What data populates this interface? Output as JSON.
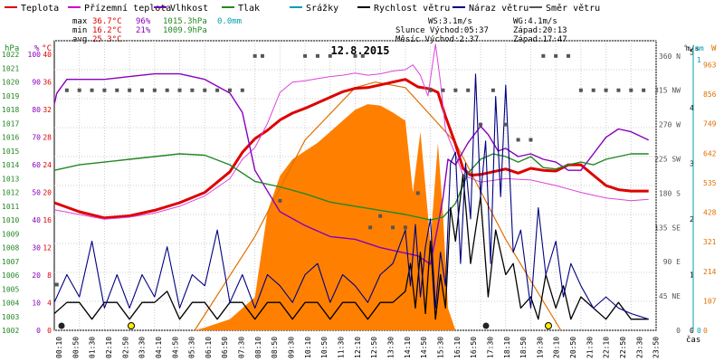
{
  "legend": [
    {
      "label": "Teplota",
      "color": "#dd0000"
    },
    {
      "label": "Přízemní teplota",
      "color": "#cc00cc"
    },
    {
      "label": "Vlhkost",
      "color": "#7700aa"
    },
    {
      "label": "Tlak",
      "color": "#228822"
    },
    {
      "label": "Srážky",
      "color": "#00a0b0"
    },
    {
      "label": "Rychlost větru",
      "color": "#000000"
    },
    {
      "label": "Náraz větru",
      "color": "#000080"
    },
    {
      "label": "Směr větru",
      "color": "#555555"
    }
  ],
  "stats": {
    "max_label": "max",
    "max_temp": "36.7°C",
    "max_hum": "96%",
    "max_press": "1015.3hPa",
    "max_rain": "0.0mm",
    "min_label": "min",
    "min_temp": "16.2°C",
    "min_hum": "21%",
    "min_press": "1009.9hPa",
    "avg_label": "avg",
    "avg_temp": "25.3°C"
  },
  "info": {
    "ws": "WS:3.1m/s",
    "wg": "WG:4.1m/s",
    "sun": "Slunce Východ:05:37",
    "sun_set": "Západ:20:13",
    "moon": "Měsíc  Východ:2:37",
    "moon_set": "Západ:17:47"
  },
  "colors": {
    "temp": "#dd0000",
    "ground": "#dd44dd",
    "humidity": "#8800bb",
    "pressure": "#228822",
    "rain": "#00a0b0",
    "wind": "#000000",
    "gust": "#000080",
    "dir": "#555555",
    "solar_fill": "#ff8000",
    "solar_line": "#e07000",
    "axis_orange": "#e07000"
  },
  "chart_data": {
    "type": "line",
    "title": "12.8.2015",
    "xlabel": "čas",
    "x_ticks": [
      "00:10",
      "00:50",
      "01:30",
      "02:10",
      "02:50",
      "03:30",
      "04:10",
      "04:50",
      "05:30",
      "06:10",
      "06:50",
      "07:30",
      "08:10",
      "08:50",
      "09:30",
      "10:10",
      "10:50",
      "11:30",
      "12:10",
      "12:50",
      "13:30",
      "14:10",
      "14:50",
      "15:30",
      "16:10",
      "16:50",
      "17:30",
      "18:10",
      "18:50",
      "19:30",
      "20:10",
      "20:50",
      "21:30",
      "22:10",
      "22:50",
      "23:30",
      "23:50"
    ],
    "axes": {
      "hPa": {
        "label": "hPa",
        "range": [
          1002,
          1023
        ],
        "ticks": [
          "1002",
          "1003",
          "1004",
          "1005",
          "1006",
          "1007",
          "1008",
          "1009",
          "1010",
          "1011",
          "1012",
          "1013",
          "1014",
          "1015",
          "1016",
          "1017",
          "1018",
          "1019",
          "1020",
          "1021",
          "1022"
        ]
      },
      "humidity": {
        "label": "%",
        "range": [
          0,
          105
        ],
        "ticks": [
          "0",
          "10",
          "20",
          "30",
          "40",
          "50",
          "60",
          "70",
          "80",
          "90",
          "100"
        ]
      },
      "temp": {
        "label": "°C",
        "range": [
          0,
          42
        ],
        "ticks": [
          "0",
          "4",
          "8",
          "12",
          "16",
          "20",
          "24",
          "28",
          "32",
          "36",
          "40"
        ]
      },
      "wind_dir": {
        "label": "°",
        "ticks": [
          "0",
          "45 NE",
          "90 E",
          "135 SE",
          "180 S",
          "225 SW",
          "270 W",
          "315 NW",
          "360 N"
        ]
      },
      "wind_speed": {
        "label": "m/s",
        "range": [
          0,
          5
        ],
        "ticks": [
          "0",
          "1",
          "2",
          "3",
          "4",
          "5"
        ]
      },
      "rain": {
        "label": "mm",
        "ticks": [
          "0",
          "1"
        ]
      },
      "solar": {
        "label": "W",
        "range": [
          0,
          1050
        ],
        "ticks": [
          "0",
          "107",
          "214",
          "321",
          "428",
          "535",
          "642",
          "749",
          "856",
          "963"
        ]
      }
    },
    "series": [
      {
        "name": "Teplota",
        "color": "#dd0000",
        "x": [
          0,
          1,
          2,
          3,
          4,
          5,
          6,
          7,
          7.5,
          8,
          8.5,
          9,
          9.5,
          10,
          10.5,
          11,
          11.5,
          12,
          12.5,
          13,
          13.5,
          14,
          14.5,
          15,
          15.3,
          15.6,
          16,
          16.3,
          16.6,
          17,
          17.5,
          18,
          18.5,
          19,
          19.5,
          20,
          20.5,
          21,
          21.5,
          22,
          22.5,
          23,
          23.7
        ],
        "y": [
          18.5,
          17.2,
          16.3,
          16.6,
          17.4,
          18.5,
          20.0,
          23.0,
          25.8,
          27.8,
          29.0,
          30.5,
          31.5,
          32.2,
          33.0,
          33.8,
          34.6,
          35.1,
          35.2,
          35.6,
          36.0,
          36.4,
          35.3,
          35.0,
          34.5,
          31.0,
          27.0,
          23.5,
          22.5,
          22.6,
          23.0,
          23.4,
          22.8,
          23.5,
          23.2,
          23.1,
          24.0,
          24.0,
          22.5,
          21.0,
          20.4,
          20.2,
          20.2
        ]
      },
      {
        "name": "Přízemní teplota",
        "color": "#dd44dd",
        "x": [
          0,
          1,
          2,
          3,
          4,
          5,
          6,
          7,
          7.5,
          8,
          8.5,
          9,
          9.5,
          10,
          10.5,
          11,
          11.5,
          12,
          12.5,
          13,
          13.5,
          14,
          14.3,
          14.6,
          14.9,
          15.2,
          15.4,
          15.6,
          16,
          16.3,
          17,
          18,
          19,
          20,
          21,
          22,
          23,
          23.7
        ],
        "y": [
          17.5,
          16.8,
          16.1,
          16.4,
          17.0,
          18.0,
          19.5,
          22.0,
          24.8,
          26.5,
          30.0,
          34.5,
          36.0,
          36.2,
          36.5,
          36.8,
          37.0,
          37.3,
          37.0,
          37.2,
          37.6,
          37.8,
          38.5,
          37.0,
          34.0,
          41.5,
          36.0,
          29.0,
          25.5,
          22.5,
          21.5,
          22.0,
          21.8,
          21.0,
          20.0,
          19.2,
          18.8,
          19.0
        ]
      },
      {
        "name": "Vlhkost",
        "color": "#8800bb",
        "x": [
          0,
          0.1,
          0.5,
          1,
          2,
          3,
          4,
          5,
          6,
          7,
          7.5,
          8,
          9,
          10,
          11,
          12,
          13,
          14,
          14.5,
          15,
          15.3,
          15.5,
          15.7,
          16,
          16.5,
          17,
          17.3,
          17.7,
          18,
          18.5,
          19,
          19.5,
          20,
          20.5,
          21,
          21.5,
          22,
          22.5,
          23,
          23.7
        ],
        "y": [
          82,
          86,
          91,
          91,
          91,
          92,
          93,
          93,
          91,
          86,
          79,
          58,
          43,
          38,
          34,
          33,
          30,
          28,
          27,
          24,
          38,
          48,
          62,
          60,
          68,
          74,
          71,
          65,
          66,
          63,
          64,
          62,
          61,
          58,
          58,
          64,
          70,
          73,
          72,
          69
        ]
      },
      {
        "name": "Tlak",
        "color": "#228822",
        "x": [
          0,
          1,
          2,
          3,
          4,
          5,
          6,
          7,
          8,
          9,
          10,
          11,
          12,
          13,
          14,
          15,
          15.5,
          16,
          16.5,
          17,
          17.5,
          18,
          18.5,
          19,
          19.5,
          20,
          20.5,
          21,
          21.5,
          22,
          22.5,
          23,
          23.7
        ],
        "y": [
          1013.6,
          1014.0,
          1014.2,
          1014.4,
          1014.6,
          1014.8,
          1014.7,
          1014.0,
          1012.8,
          1012.4,
          1011.9,
          1011.3,
          1011.0,
          1010.7,
          1010.4,
          1010.0,
          1010.2,
          1011.2,
          1013.4,
          1014.4,
          1014.8,
          1014.6,
          1014.2,
          1014.6,
          1013.8,
          1013.7,
          1014.0,
          1014.2,
          1014.0,
          1014.4,
          1014.6,
          1014.8,
          1014.8
        ]
      },
      {
        "name": "Rychlost větru",
        "color": "#000000",
        "x": [
          0,
          0.5,
          1,
          1.5,
          2,
          2.5,
          3,
          3.5,
          4,
          4.5,
          5,
          5.5,
          6,
          6.5,
          7,
          7.5,
          8,
          8.5,
          9,
          9.5,
          10,
          10.5,
          11,
          11.5,
          12,
          12.5,
          13,
          13.5,
          14,
          14.2,
          14.4,
          14.6,
          14.8,
          15,
          15.2,
          15.4,
          15.6,
          15.8,
          16,
          16.3,
          16.6,
          17,
          17.3,
          17.6,
          18,
          18.3,
          18.6,
          19,
          19.3,
          19.6,
          20,
          20.3,
          20.6,
          21,
          21.5,
          22,
          22.5,
          23,
          23.7
        ],
        "y": [
          0.3,
          0.5,
          0.5,
          0.2,
          0.5,
          0.5,
          0.2,
          0.5,
          0.5,
          0.7,
          0.2,
          0.5,
          0.5,
          0.2,
          0.5,
          0.5,
          0.2,
          0.5,
          0.5,
          0.2,
          0.5,
          0.5,
          0.2,
          0.5,
          0.5,
          0.2,
          0.5,
          0.5,
          0.7,
          1.2,
          0.4,
          1.4,
          0.3,
          1.6,
          0.2,
          1.0,
          0.4,
          2.2,
          1.6,
          2.8,
          1.2,
          2.4,
          0.6,
          1.8,
          1.0,
          1.2,
          0.4,
          0.6,
          0.2,
          1.0,
          0.4,
          0.8,
          0.2,
          0.6,
          0.4,
          0.2,
          0.5,
          0.2,
          0.2
        ]
      },
      {
        "name": "Náraz větru",
        "color": "#000080",
        "x": [
          0,
          0.5,
          1,
          1.5,
          2,
          2.5,
          3,
          3.5,
          4,
          4.5,
          5,
          5.5,
          6,
          6.5,
          7,
          7.5,
          8,
          8.5,
          9,
          9.5,
          10,
          10.5,
          11,
          11.5,
          12,
          12.5,
          13,
          13.5,
          14,
          14.2,
          14.4,
          14.6,
          14.8,
          15,
          15.2,
          15.4,
          15.6,
          15.8,
          16,
          16.2,
          16.4,
          16.6,
          16.8,
          17,
          17.2,
          17.4,
          17.6,
          17.8,
          18,
          18.3,
          18.6,
          19,
          19.3,
          19.6,
          20,
          20.3,
          20.6,
          21,
          21.5,
          22,
          22.5,
          23,
          23.7
        ],
        "y": [
          0.5,
          1.0,
          0.6,
          1.6,
          0.4,
          1.0,
          0.4,
          1.0,
          0.6,
          1.5,
          0.4,
          1.0,
          0.8,
          1.8,
          0.5,
          1.0,
          0.4,
          1.0,
          0.8,
          0.5,
          1.0,
          1.2,
          0.5,
          1.0,
          0.8,
          0.5,
          1.0,
          1.2,
          1.8,
          0.8,
          1.9,
          0.6,
          1.5,
          2.0,
          0.4,
          1.4,
          0.8,
          3.0,
          3.2,
          1.2,
          3.0,
          2.0,
          4.6,
          2.4,
          3.4,
          1.2,
          4.2,
          2.4,
          4.4,
          1.4,
          1.8,
          0.4,
          2.2,
          1.0,
          1.6,
          0.6,
          1.2,
          0.8,
          0.4,
          0.6,
          0.4,
          0.3,
          0.2
        ]
      },
      {
        "name": "Směr větru",
        "color": "#555555",
        "type": "scatter",
        "x": [
          0.1,
          0.5,
          1,
          1.5,
          2,
          2.5,
          3,
          3.5,
          4,
          4.5,
          5,
          5.5,
          6,
          6.5,
          7,
          7.5,
          8,
          8.3,
          9,
          10,
          10.5,
          11,
          12,
          12.3,
          12.6,
          13,
          13.5,
          14,
          14.5,
          15,
          15.5,
          16,
          16.5,
          17,
          17.5,
          18,
          18.5,
          19,
          19.5,
          20,
          20.5,
          21,
          21.5,
          22,
          22.5,
          23,
          23.5
        ],
        "y": [
          60,
          315,
          315,
          315,
          315,
          315,
          315,
          315,
          315,
          315,
          315,
          315,
          315,
          315,
          315,
          315,
          360,
          360,
          170,
          360,
          360,
          360,
          360,
          360,
          135,
          150,
          135,
          135,
          180,
          315,
          315,
          315,
          315,
          270,
          315,
          270,
          250,
          250,
          360,
          360,
          360,
          315,
          315,
          315,
          315,
          315,
          315
        ]
      }
    ],
    "solar": {
      "x": [
        5.6,
        6,
        7,
        8,
        8.5,
        9,
        9.5,
        10,
        10.5,
        11,
        11.5,
        12,
        12.5,
        13,
        13.5,
        14,
        14.3,
        14.6,
        15,
        15.3,
        15.5,
        15.7,
        16
      ],
      "y": [
        0,
        10,
        40,
        120,
        430,
        560,
        620,
        650,
        680,
        720,
        760,
        800,
        820,
        815,
        790,
        760,
        500,
        720,
        320,
        680,
        420,
        80,
        0
      ]
    },
    "solar_theory": {
      "x": [
        5.6,
        8,
        10,
        12,
        12.8,
        14,
        16,
        18,
        20.2
      ],
      "y": [
        0,
        340,
        690,
        880,
        900,
        880,
        680,
        330,
        0
      ]
    }
  }
}
